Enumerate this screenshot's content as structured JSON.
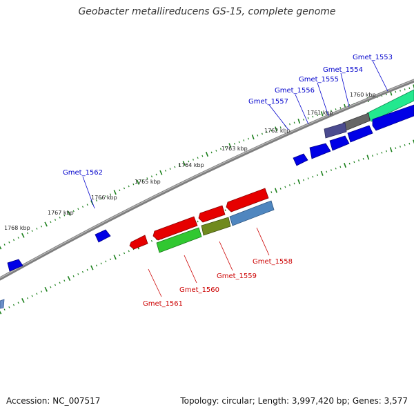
{
  "title": "Geobacter metallireducens GS-15, complete genome",
  "footer": {
    "accession": "Accession: NC_007517",
    "summary": "Topology: circular; Length: 3,997,420 bp; Genes: 3,577"
  },
  "colors": {
    "backbone": "#7f7f7f",
    "tick": "#1a7f1a",
    "forward_label": "#0000cc",
    "reverse_label": "#cc0000"
  },
  "scale_labels": [
    "1760 kbp",
    "1761 kbp",
    "1762 kbp",
    "1763 kbp",
    "1764 kbp",
    "1765 kbp",
    "1766 kbp",
    "1767 kbp",
    "1768 kbp"
  ],
  "labels": {
    "forward": [
      "Gmet_1553",
      "Gmet_1554",
      "Gmet_1555",
      "Gmet_1556",
      "Gmet_1557",
      "Gmet_1562"
    ],
    "reverse": [
      "Gmet_1558",
      "Gmet_1559",
      "Gmet_1560",
      "Gmet_1561"
    ]
  },
  "feature_colors": [
    "#0000e6",
    "#23e88f",
    "#666666",
    "#4b4b8f",
    "#e60000",
    "#31c831",
    "#708a1e",
    "#4f86bf",
    "#6a8fc8"
  ]
}
